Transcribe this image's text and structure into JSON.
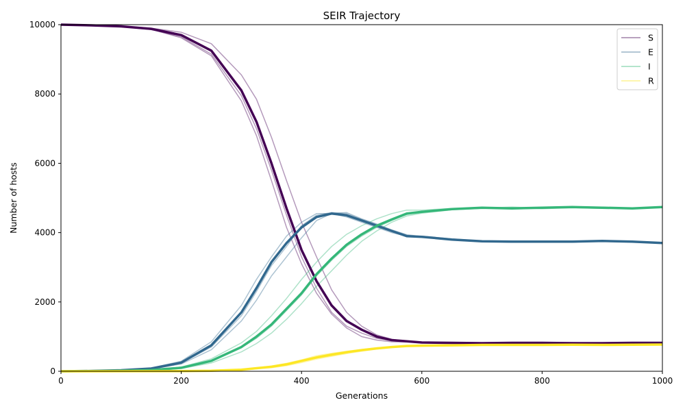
{
  "chart_data": {
    "type": "line",
    "title": "SEIR Trajectory",
    "xlabel": "Generations",
    "ylabel": "Number of hosts",
    "xlim": [
      0,
      1000
    ],
    "ylim": [
      0,
      10000
    ],
    "xticks": [
      0,
      200,
      400,
      600,
      800,
      1000
    ],
    "yticks": [
      0,
      2000,
      4000,
      6000,
      8000,
      10000
    ],
    "grid": false,
    "legend_position": "top-right",
    "series": [
      {
        "name": "S",
        "color": "#440154",
        "x": [
          0,
          50,
          100,
          150,
          200,
          250,
          300,
          325,
          350,
          375,
          400,
          425,
          450,
          475,
          500,
          525,
          550,
          600,
          650,
          700,
          750,
          800,
          850,
          900,
          950,
          1000
        ],
        "mean": [
          10000,
          9980,
          9950,
          9880,
          9700,
          9250,
          8100,
          7200,
          6000,
          4700,
          3500,
          2600,
          1900,
          1450,
          1200,
          1000,
          900,
          830,
          820,
          810,
          820,
          820,
          810,
          810,
          820,
          820
        ],
        "runs": [
          [
            10000,
            9985,
            9960,
            9900,
            9780,
            9450,
            8550,
            7850,
            6750,
            5500,
            4300,
            3300,
            2350,
            1700,
            1300,
            1050,
            920,
            820,
            810,
            810,
            830,
            820,
            800,
            800,
            820,
            810
          ],
          [
            10000,
            9975,
            9940,
            9860,
            9650,
            9150,
            7950,
            7000,
            5800,
            4500,
            3300,
            2400,
            1700,
            1300,
            1100,
            950,
            880,
            820,
            830,
            810,
            800,
            820,
            830,
            810,
            800,
            820
          ],
          [
            10000,
            9980,
            9950,
            9870,
            9620,
            9100,
            7800,
            6800,
            5500,
            4150,
            3100,
            2250,
            1650,
            1250,
            1000,
            900,
            850,
            840,
            820,
            810,
            820,
            810,
            810,
            820,
            810,
            810
          ]
        ]
      },
      {
        "name": "E",
        "color": "#31688e",
        "x": [
          0,
          50,
          100,
          150,
          200,
          250,
          300,
          325,
          350,
          375,
          400,
          425,
          450,
          475,
          500,
          525,
          550,
          575,
          600,
          650,
          700,
          750,
          800,
          850,
          900,
          950,
          1000
        ],
        "mean": [
          0,
          10,
          30,
          80,
          250,
          750,
          1700,
          2400,
          3150,
          3700,
          4150,
          4450,
          4550,
          4500,
          4350,
          4200,
          4050,
          3900,
          3880,
          3800,
          3750,
          3740,
          3740,
          3740,
          3760,
          3740,
          3700
        ],
        "runs": [
          [
            0,
            12,
            35,
            95,
            290,
            850,
            1900,
            2650,
            3300,
            3900,
            4300,
            4550,
            4550,
            4450,
            4300,
            4150,
            4000,
            3900,
            3900,
            3820,
            3760,
            3740,
            3760,
            3720,
            3770,
            3740,
            3710
          ],
          [
            0,
            8,
            28,
            75,
            240,
            700,
            1600,
            2300,
            3050,
            3600,
            4200,
            4500,
            4580,
            4550,
            4380,
            4230,
            4050,
            3920,
            3880,
            3790,
            3740,
            3760,
            3750,
            3740,
            3760,
            3750,
            3710
          ],
          [
            0,
            6,
            24,
            65,
            210,
            620,
            1450,
            2050,
            2750,
            3300,
            3850,
            4350,
            4550,
            4580,
            4400,
            4250,
            4080,
            3940,
            3890,
            3800,
            3750,
            3720,
            3730,
            3750,
            3750,
            3740,
            3700
          ]
        ]
      },
      {
        "name": "I",
        "color": "#35b779",
        "x": [
          0,
          50,
          100,
          150,
          200,
          250,
          300,
          325,
          350,
          375,
          400,
          425,
          450,
          475,
          500,
          525,
          550,
          575,
          600,
          650,
          700,
          750,
          800,
          850,
          900,
          950,
          1000
        ],
        "mean": [
          0,
          5,
          15,
          35,
          100,
          300,
          700,
          1000,
          1350,
          1800,
          2250,
          2800,
          3250,
          3650,
          3950,
          4200,
          4380,
          4550,
          4600,
          4680,
          4720,
          4700,
          4720,
          4740,
          4720,
          4700,
          4740
        ],
        "runs": [
          [
            0,
            6,
            18,
            42,
            120,
            360,
            820,
            1150,
            1600,
            2100,
            2650,
            3150,
            3600,
            3950,
            4200,
            4400,
            4550,
            4650,
            4650,
            4700,
            4720,
            4700,
            4710,
            4720,
            4740,
            4700,
            4730
          ],
          [
            0,
            5,
            15,
            35,
            95,
            290,
            680,
            950,
            1300,
            1750,
            2200,
            2750,
            3200,
            3600,
            3900,
            4150,
            4350,
            4520,
            4600,
            4680,
            4710,
            4740,
            4700,
            4750,
            4720,
            4690,
            4740
          ],
          [
            0,
            4,
            12,
            28,
            80,
            240,
            560,
            800,
            1100,
            1500,
            1950,
            2450,
            2900,
            3350,
            3750,
            4050,
            4300,
            4480,
            4560,
            4660,
            4700,
            4730,
            4690,
            4720,
            4700,
            4710,
            4740
          ]
        ]
      },
      {
        "name": "R",
        "color": "#fde725",
        "x": [
          0,
          100,
          200,
          250,
          300,
          350,
          375,
          400,
          425,
          450,
          475,
          500,
          525,
          550,
          575,
          600,
          650,
          700,
          750,
          800,
          850,
          900,
          950,
          1000
        ],
        "mean": [
          0,
          2,
          5,
          15,
          45,
          130,
          200,
          300,
          400,
          480,
          550,
          610,
          660,
          700,
          730,
          740,
          750,
          760,
          760,
          760,
          765,
          760,
          765,
          770
        ],
        "runs": [
          [
            0,
            2,
            6,
            18,
            55,
            150,
            230,
            330,
            450,
            520,
            580,
            630,
            680,
            710,
            740,
            745,
            750,
            760,
            770,
            760,
            760,
            770,
            760,
            770
          ],
          [
            0,
            1,
            4,
            12,
            40,
            120,
            180,
            280,
            380,
            450,
            530,
            600,
            650,
            690,
            720,
            735,
            745,
            755,
            760,
            750,
            770,
            760,
            770,
            765
          ],
          [
            0,
            1,
            3,
            10,
            35,
            100,
            160,
            250,
            350,
            430,
            510,
            580,
            640,
            690,
            725,
            740,
            750,
            760,
            755,
            765,
            760,
            755,
            765,
            770
          ]
        ]
      }
    ]
  }
}
